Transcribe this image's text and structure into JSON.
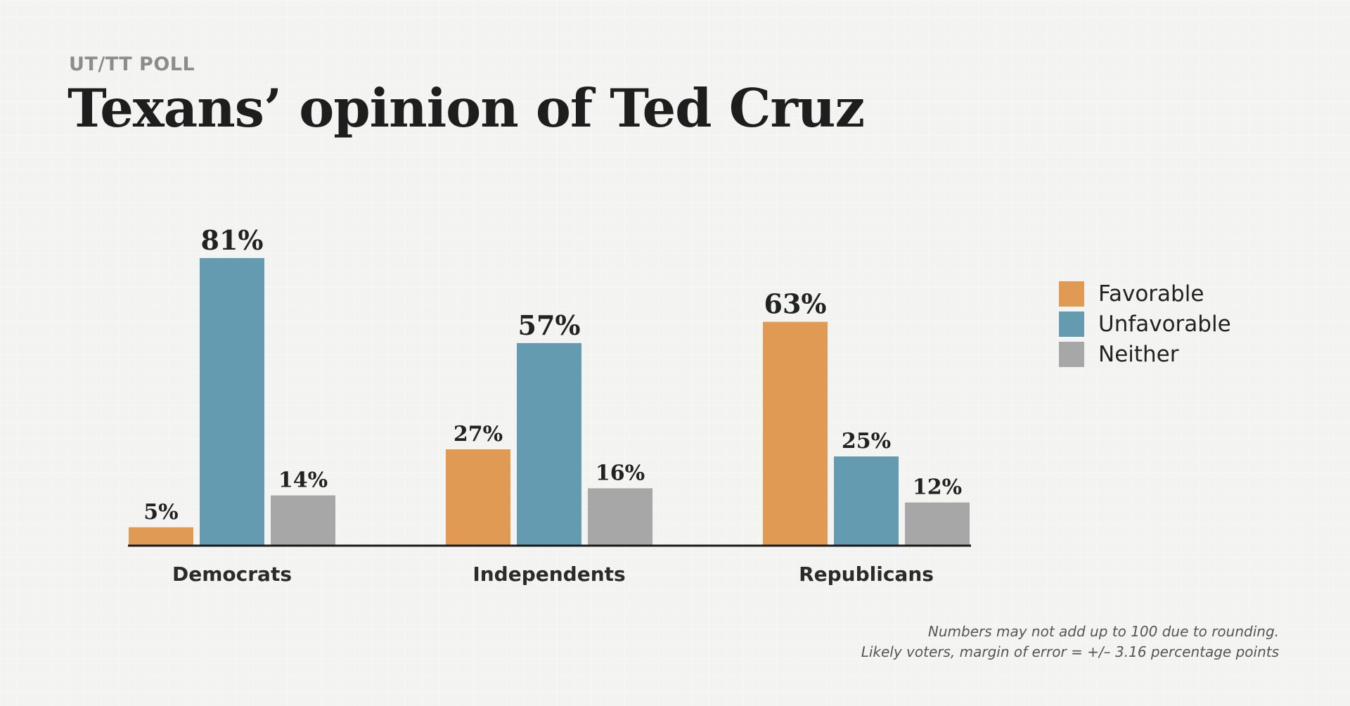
{
  "header": {
    "kicker": "UT/TT POLL",
    "title": "Texans’ opinion of Ted Cruz"
  },
  "chart_data": {
    "type": "bar",
    "categories": [
      "Democrats",
      "Independents",
      "Republicans"
    ],
    "series": [
      {
        "name": "Favorable",
        "values": [
          5,
          27,
          63
        ],
        "labels": [
          "5%",
          "27%",
          "63%"
        ],
        "color": "#e09a53"
      },
      {
        "name": "Unfavorable",
        "values": [
          81,
          57,
          25
        ],
        "labels": [
          "81%",
          "57%",
          "25%"
        ],
        "color": "#659bb0"
      },
      {
        "name": "Neither",
        "values": [
          14,
          16,
          12
        ],
        "labels": [
          "14%",
          "16%",
          "12%"
        ],
        "color": "#a8a7a7"
      }
    ],
    "ylim": [
      0,
      81
    ],
    "grid": false,
    "legend": "right",
    "xlabel": "",
    "ylabel": ""
  },
  "footnotes": [
    "Numbers may not add up to 100 due to rounding.",
    "Likely voters, margin of error = +/– 3.16 percentage points"
  ]
}
